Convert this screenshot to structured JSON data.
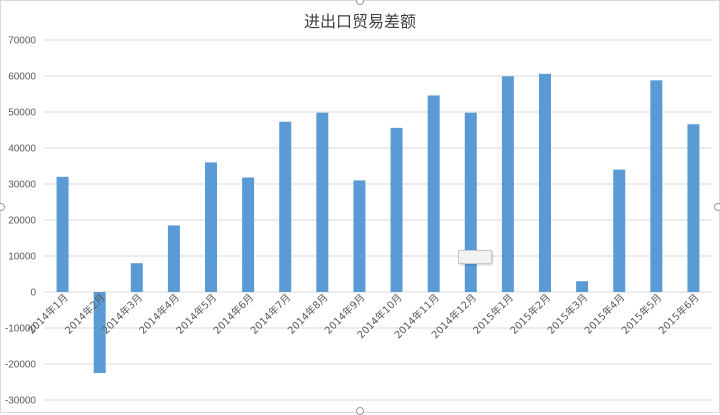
{
  "chart_data": {
    "type": "bar",
    "title": "进出口贸易差额",
    "categories": [
      "2014年1月",
      "2014年2月",
      "2014年3月",
      "2014年4月",
      "2014年5月",
      "2014年6月",
      "2014年7月",
      "2014年8月",
      "2014年9月",
      "2014年10月",
      "2014年11月",
      "2014年12月",
      "2015年1月",
      "2015年2月",
      "2015年3月",
      "2015年4月",
      "2015年5月",
      "2015年6月"
    ],
    "values": [
      32000,
      -22500,
      8000,
      18500,
      36000,
      31800,
      47300,
      49800,
      31000,
      45600,
      54600,
      49800,
      59900,
      60600,
      3000,
      34000,
      58800,
      46600
    ],
    "ylim": [
      -30000,
      70000
    ],
    "yticks": [
      70000,
      60000,
      50000,
      40000,
      30000,
      20000,
      10000,
      0,
      -10000,
      -20000,
      -30000
    ],
    "grid": true,
    "bar_color": "#5b9bd5",
    "grid_color": "#d9d9d9",
    "legend": "none"
  }
}
